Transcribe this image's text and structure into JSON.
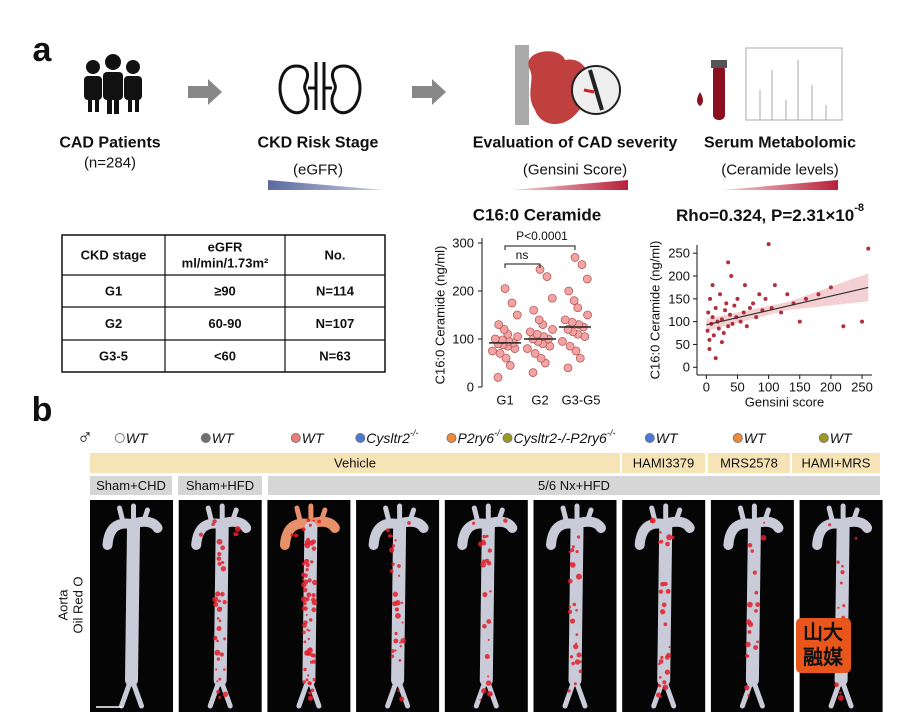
{
  "panel_a": {
    "label": "a",
    "workflow": [
      {
        "title": "CAD Patients",
        "subtitle": "(n=284)"
      },
      {
        "title": "CKD Risk Stage",
        "subtitle": "(eGFR)"
      },
      {
        "title": "Evaluation of CAD severity",
        "subtitle": "(Gensini Score)"
      },
      {
        "title": "Serum Metabolomic",
        "subtitle": "(Ceramide levels)"
      }
    ],
    "table": {
      "header": [
        "CKD stage",
        [
          "eGFR",
          "ml/min/1.73m²"
        ],
        "No."
      ],
      "rows": [
        [
          "G1",
          "≥90",
          "N=114"
        ],
        [
          "G2",
          "60-90",
          "N=107"
        ],
        [
          "G3-5",
          "<60",
          "N=63"
        ]
      ]
    }
  },
  "chart_data": [
    {
      "type": "strip",
      "title": "C16:0 Ceramide",
      "y_label": "C16:0 Ceramide (ng/ml)",
      "categories": [
        "G1",
        "G2",
        "G3-G5"
      ],
      "values": [
        [
          20,
          45,
          60,
          70,
          75,
          80,
          85,
          88,
          90,
          92,
          95,
          98,
          100,
          105,
          110,
          120,
          130,
          150,
          175,
          205
        ],
        [
          30,
          50,
          60,
          70,
          80,
          85,
          90,
          95,
          100,
          100,
          105,
          110,
          115,
          120,
          130,
          140,
          160,
          185,
          230,
          245
        ],
        [
          40,
          60,
          75,
          85,
          95,
          105,
          110,
          115,
          120,
          125,
          130,
          135,
          140,
          150,
          165,
          180,
          200,
          225,
          255,
          270
        ]
      ],
      "means": [
        92,
        100,
        125
      ],
      "color": "#f2a3a3",
      "ylim": [
        0,
        300
      ],
      "yticks": [
        0,
        100,
        200,
        300
      ],
      "annotations": [
        "P<0.0001",
        "ns"
      ]
    },
    {
      "type": "scatter",
      "title": "Rho=0.324, P=2.31×10",
      "title_sup": "-8",
      "x_label": "Gensini score",
      "y_label": "C16:0 Ceramide (ng/ml)",
      "x": [
        2,
        3,
        5,
        6,
        8,
        10,
        12,
        15,
        18,
        20,
        22,
        25,
        28,
        30,
        32,
        35,
        38,
        40,
        42,
        45,
        48,
        50,
        55,
        60,
        62,
        65,
        70,
        75,
        80,
        85,
        90,
        95,
        100,
        105,
        110,
        120,
        130,
        140,
        150,
        160,
        180,
        200,
        220,
        250,
        260,
        5,
        10,
        15,
        25,
        35
      ],
      "y": [
        80,
        120,
        60,
        150,
        95,
        110,
        70,
        130,
        100,
        85,
        160,
        105,
        75,
        125,
        140,
        90,
        115,
        200,
        95,
        135,
        110,
        150,
        100,
        120,
        180,
        90,
        130,
        140,
        110,
        160,
        125,
        150,
        270,
        130,
        180,
        120,
        160,
        140,
        100,
        150,
        160,
        175,
        90,
        100,
        260,
        40,
        180,
        20,
        55,
        230
      ],
      "color": "#b0303c",
      "fit_line": {
        "x": [
          0,
          260
        ],
        "y": [
          93,
          175
        ]
      },
      "xlim": [
        -15,
        266
      ],
      "ylim": [
        -17,
        268
      ],
      "xticks": [
        0,
        50,
        100,
        150,
        200,
        250
      ],
      "yticks": [
        0,
        50,
        100,
        150,
        200,
        250
      ]
    }
  ],
  "panel_b": {
    "label": "b",
    "sex": "♂",
    "genotypes": [
      {
        "name": "WT",
        "sup": "",
        "color": "#ffffff"
      },
      {
        "name": "WT",
        "sup": "",
        "color": "#707070"
      },
      {
        "name": "WT",
        "sup": "",
        "color": "#f07a7a"
      },
      {
        "name": "Cysltr2",
        "sup": "-/-",
        "color": "#4a78d8"
      },
      {
        "name": "P2ry6",
        "sup": "-/-",
        "color": "#f08a3a"
      },
      {
        "name": "Cysltr2-/-P2ry6",
        "sup": "-/-",
        "color": "#9a9a20"
      },
      {
        "name": "WT",
        "sup": "",
        "color": "#4a78d8"
      },
      {
        "name": "WT",
        "sup": "",
        "color": "#f08a3a"
      },
      {
        "name": "WT",
        "sup": "",
        "color": "#9a9a20"
      }
    ],
    "treatments": [
      "Vehicle",
      "HAMI3379",
      "MRS2578",
      "HAMI+MRS"
    ],
    "surgeries": [
      "Sham+CHD",
      "Sham+HFD",
      "5/6 Nx+HFD"
    ],
    "image_label": [
      "Aorta",
      "Oil Red O"
    ],
    "watermark": [
      "山大",
      "融媒"
    ]
  }
}
